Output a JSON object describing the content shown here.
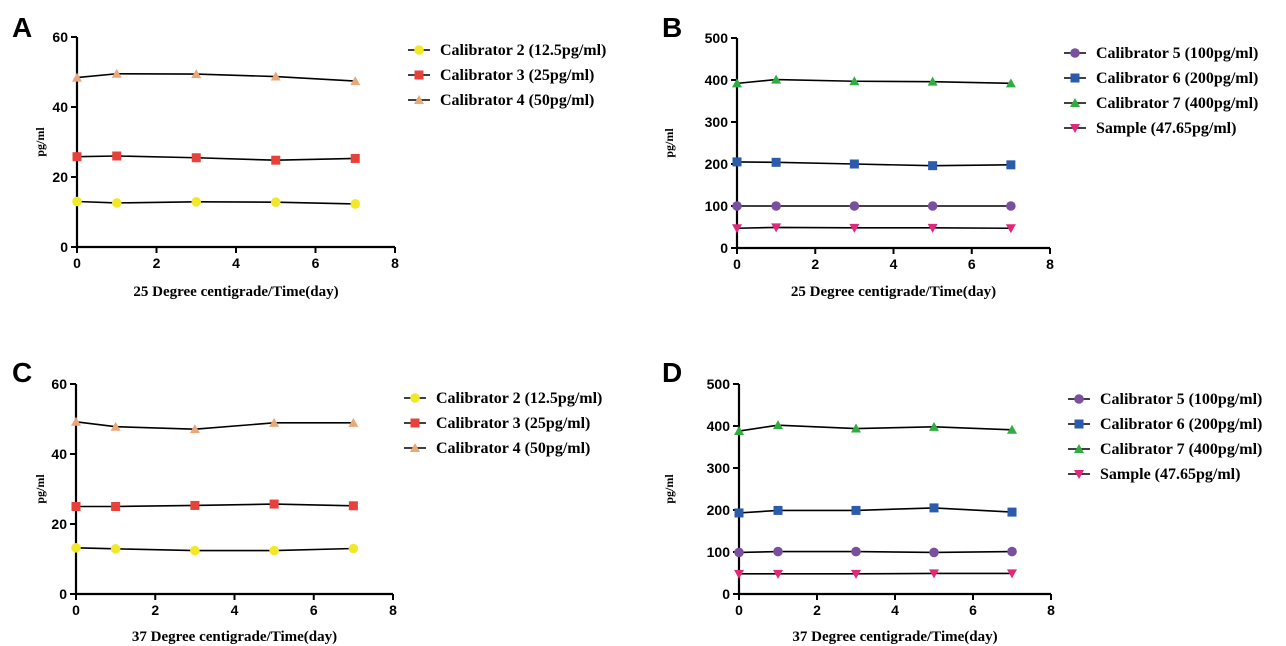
{
  "figure": {
    "panels": [
      {
        "letter": "A"
      },
      {
        "letter": "B"
      },
      {
        "letter": "C"
      },
      {
        "letter": "D"
      }
    ]
  },
  "chart_data": [
    {
      "type": "line",
      "panel": "A",
      "xlabel": "25 Degree centigrade/Time(day)",
      "ylabel": "pg/ml",
      "xlim": [
        0,
        8
      ],
      "ylim": [
        0,
        60
      ],
      "xticks": [
        0,
        2,
        4,
        6,
        8
      ],
      "yticks": [
        0,
        20,
        40,
        60
      ],
      "grid": false,
      "legend": "right",
      "x": [
        0,
        1,
        3,
        5,
        7
      ],
      "series": [
        {
          "name": "Calibrator 2 (12.5pg/ml)",
          "values": [
            13.0,
            12.6,
            12.9,
            12.8,
            12.3
          ],
          "color": "#f2e82a",
          "marker": "circle"
        },
        {
          "name": "Calibrator 3 (25pg/ml)",
          "values": [
            25.8,
            26.0,
            25.5,
            24.8,
            25.3
          ],
          "color": "#e8413b",
          "marker": "square"
        },
        {
          "name": "Calibrator 4 (50pg/ml)",
          "values": [
            48.4,
            49.5,
            49.4,
            48.7,
            47.4
          ],
          "color": "#e8a878",
          "marker": "triangle"
        }
      ]
    },
    {
      "type": "line",
      "panel": "B",
      "xlabel": "25 Degree centigrade/Time(day)",
      "ylabel": "pg/ml",
      "xlim": [
        0,
        8
      ],
      "ylim": [
        0,
        500
      ],
      "xticks": [
        0,
        2,
        4,
        6,
        8
      ],
      "yticks": [
        0,
        100,
        200,
        300,
        400,
        500
      ],
      "grid": false,
      "legend": "right",
      "x": [
        0,
        1,
        3,
        5,
        7
      ],
      "series": [
        {
          "name": "Calibrator 5 (100pg/ml)",
          "values": [
            100,
            100,
            100,
            100,
            100
          ],
          "color": "#7b4fa0",
          "marker": "circle"
        },
        {
          "name": "Calibrator 6 (200pg/ml)",
          "values": [
            205,
            204,
            200,
            196,
            198
          ],
          "color": "#2b5bab",
          "marker": "square"
        },
        {
          "name": "Calibrator 7 (400pg/ml)",
          "values": [
            392,
            401,
            397,
            396,
            392
          ],
          "color": "#2fae3f",
          "marker": "triangle"
        },
        {
          "name": "Sample (47.65pg/ml)",
          "values": [
            47,
            49,
            48,
            48,
            47
          ],
          "color": "#e2287a",
          "marker": "triangle-down"
        }
      ]
    },
    {
      "type": "line",
      "panel": "C",
      "xlabel": "37 Degree centigrade/Time(day)",
      "ylabel": "pg/ml",
      "xlim": [
        0,
        8
      ],
      "ylim": [
        0,
        60
      ],
      "xticks": [
        0,
        2,
        4,
        6,
        8
      ],
      "yticks": [
        0,
        20,
        40,
        60
      ],
      "grid": false,
      "legend": "right",
      "x": [
        0,
        1,
        3,
        5,
        7
      ],
      "series": [
        {
          "name": "Calibrator 2 (12.5pg/ml)",
          "values": [
            13.2,
            12.9,
            12.4,
            12.4,
            13.0
          ],
          "color": "#f2e82a",
          "marker": "circle"
        },
        {
          "name": "Calibrator 3 (25pg/ml)",
          "values": [
            25.0,
            25.0,
            25.3,
            25.7,
            25.2
          ],
          "color": "#e8413b",
          "marker": "square"
        },
        {
          "name": "Calibrator 4 (50pg/ml)",
          "values": [
            49.2,
            47.8,
            47.1,
            48.9,
            48.9
          ],
          "color": "#e8a878",
          "marker": "triangle"
        }
      ]
    },
    {
      "type": "line",
      "panel": "D",
      "xlabel": "37 Degree centigrade/Time(day)",
      "ylabel": "pg/ml",
      "xlim": [
        0,
        8
      ],
      "ylim": [
        0,
        500
      ],
      "xticks": [
        0,
        2,
        4,
        6,
        8
      ],
      "yticks": [
        0,
        100,
        200,
        300,
        400,
        500
      ],
      "grid": false,
      "legend": "right",
      "x": [
        0,
        1,
        3,
        5,
        7
      ],
      "series": [
        {
          "name": "Calibrator 5 (100pg/ml)",
          "values": [
            99,
            101,
            101,
            99,
            101
          ],
          "color": "#7b4fa0",
          "marker": "circle"
        },
        {
          "name": "Calibrator 6 (200pg/ml)",
          "values": [
            193,
            199,
            199,
            205,
            195
          ],
          "color": "#2b5bab",
          "marker": "square"
        },
        {
          "name": "Calibrator 7 (400pg/ml)",
          "values": [
            388,
            402,
            394,
            398,
            391
          ],
          "color": "#2fae3f",
          "marker": "triangle"
        },
        {
          "name": "Sample (47.65pg/ml)",
          "values": [
            48,
            48,
            48,
            49,
            49
          ],
          "color": "#e2287a",
          "marker": "triangle-down"
        }
      ]
    }
  ]
}
